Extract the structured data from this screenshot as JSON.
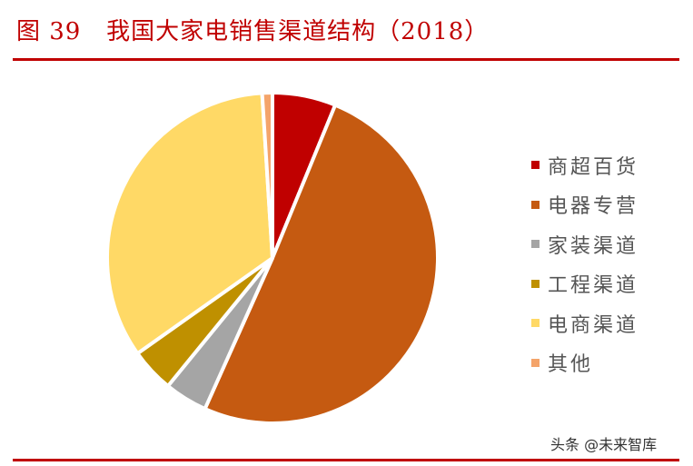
{
  "title": "图 39   我国大家电销售渠道结构（2018）",
  "watermark": "头条 @未来智库",
  "colors": {
    "accent": "#c00000"
  },
  "chart_data": {
    "type": "pie",
    "title": "我国大家电销售渠道结构（2018）",
    "figure_label": "图 39",
    "start_angle": "12 o'clock",
    "direction": "clockwise",
    "legend_position": "right",
    "categories": [
      "商超百货",
      "电器专营",
      "家装渠道",
      "工程渠道",
      "电商渠道",
      "其他"
    ],
    "values": [
      6.2,
      50.5,
      4.2,
      4.3,
      33.8,
      1.0
    ],
    "unit": "%",
    "colors": [
      "#c00000",
      "#c55a11",
      "#a5a5a5",
      "#bf9000",
      "#ffd966",
      "#f4a46a"
    ]
  },
  "legend": {
    "items": [
      {
        "label": "商超百货",
        "color": "#c00000"
      },
      {
        "label": "电器专营",
        "color": "#c55a11"
      },
      {
        "label": "家装渠道",
        "color": "#a5a5a5"
      },
      {
        "label": "工程渠道",
        "color": "#bf9000"
      },
      {
        "label": "电商渠道",
        "color": "#ffd966"
      },
      {
        "label": "其他",
        "color": "#f4a46a"
      }
    ]
  }
}
